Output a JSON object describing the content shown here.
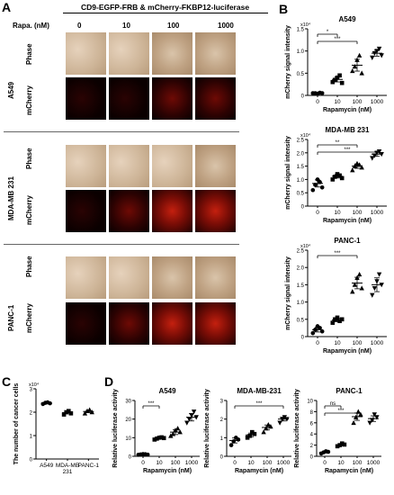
{
  "panel_a": {
    "letter": "A",
    "title": "CD9-EGFP-FRB & mCherry-FKBP12-luciferase",
    "rapa_label": "Rapa. (nM)",
    "concentrations": [
      "0",
      "10",
      "100",
      "1000"
    ],
    "cell_lines": [
      "A549",
      "MDA-MB 231",
      "PANC-1"
    ],
    "row_labels": [
      "Phase",
      "mCherry"
    ]
  },
  "panel_b": {
    "letter": "B",
    "ylabel": "mCherry signal intensity",
    "xlabel": "Rapamycin (nM)",
    "exponent": "x10⁴"
  },
  "panel_c": {
    "letter": "C",
    "ylabel": "The number of cancer cells",
    "exponent": "x10⁴"
  },
  "panel_d": {
    "letter": "D",
    "ylabel": "Relative luciferase activity",
    "xlabel": "Rapamycin (nM)"
  },
  "chart_data": [
    {
      "id": "B-A549",
      "type": "scatter",
      "title": "A549",
      "categories": [
        "0",
        "10",
        "100",
        "1000"
      ],
      "ylabel": "mCherry signal intensity",
      "xlabel": "Rapamycin (nM)",
      "ylim": [
        0,
        1.5
      ],
      "yticks": [
        "0",
        "0.5",
        "1.0",
        "1.5"
      ],
      "points": [
        [
          0.05,
          0.05,
          0.04,
          0.06,
          0.05
        ],
        [
          0.3,
          0.35,
          0.4,
          0.45,
          0.28
        ],
        [
          0.55,
          0.65,
          0.8,
          0.9,
          0.5
        ],
        [
          0.85,
          0.95,
          1.0,
          1.05,
          0.9
        ]
      ],
      "means": [
        0.05,
        0.36,
        0.68,
        0.95
      ],
      "sig": [
        {
          "from": 0,
          "to": 1,
          "label": "*"
        },
        {
          "from": 0,
          "to": 2,
          "label": "***"
        }
      ]
    },
    {
      "id": "B-MDA",
      "type": "scatter",
      "title": "MDA-MB 231",
      "categories": [
        "0",
        "10",
        "100",
        "1000"
      ],
      "ylabel": "mCherry signal intensity",
      "xlabel": "Rapamycin (nM)",
      "ylim": [
        0,
        2.5
      ],
      "yticks": [
        "0",
        "0.5",
        "1.0",
        "1.5",
        "2.0",
        "2.5"
      ],
      "points": [
        [
          0.6,
          0.8,
          1.0,
          0.9,
          0.7
        ],
        [
          1.0,
          1.1,
          1.2,
          1.15,
          1.05
        ],
        [
          1.35,
          1.5,
          1.6,
          1.55,
          1.45
        ],
        [
          1.8,
          1.9,
          2.0,
          2.05,
          1.95
        ]
      ],
      "means": [
        0.85,
        1.12,
        1.5,
        1.95
      ],
      "sig": [
        {
          "from": 0,
          "to": 2,
          "label": "**"
        },
        {
          "from": 0,
          "to": 3,
          "label": "***"
        }
      ]
    },
    {
      "id": "B-PANC",
      "type": "scatter",
      "title": "PANC-1",
      "categories": [
        "0",
        "10",
        "100",
        "1000"
      ],
      "ylabel": "mCherry signal intensity",
      "xlabel": "Rapamycin (nM)",
      "ylim": [
        0,
        2.5
      ],
      "yticks": [
        "0",
        "0.5",
        "1.0",
        "1.5",
        "2.0",
        "2.5"
      ],
      "points": [
        [
          0.1,
          0.2,
          0.3,
          0.25,
          0.15
        ],
        [
          0.4,
          0.5,
          0.55,
          0.45,
          0.5
        ],
        [
          1.3,
          1.5,
          1.7,
          1.8,
          1.4
        ],
        [
          1.2,
          1.4,
          1.6,
          1.8,
          1.5
        ]
      ],
      "means": [
        0.2,
        0.48,
        1.55,
        1.5
      ],
      "sig": [
        {
          "from": 0,
          "to": 2,
          "label": "***"
        }
      ]
    },
    {
      "id": "C",
      "type": "scatter",
      "title": "",
      "categories": [
        "A549",
        "MDA-MB 231",
        "PANC-1"
      ],
      "ylabel": "The number of cancer cells",
      "xlabel": "",
      "ylim": [
        0,
        3
      ],
      "yticks": [
        "0",
        "1",
        "2",
        "3"
      ],
      "points": [
        [
          2.35,
          2.4,
          2.42,
          2.38
        ],
        [
          1.9,
          2.0,
          2.05,
          1.95
        ],
        [
          1.95,
          2.05,
          2.1,
          2.0
        ]
      ],
      "means": [
        2.39,
        1.98,
        2.03
      ],
      "sig": []
    },
    {
      "id": "D-A549",
      "type": "scatter",
      "title": "A549",
      "categories": [
        "0",
        "10",
        "100",
        "1000"
      ],
      "ylabel": "Relative luciferase activity",
      "xlabel": "Rapamycin (nM)",
      "ylim": [
        0,
        30
      ],
      "yticks": [
        "0",
        "10",
        "20",
        "30"
      ],
      "points": [
        [
          0.8,
          1.0,
          1.2,
          1.1,
          0.9
        ],
        [
          9,
          9.5,
          10,
          10.2,
          9.8
        ],
        [
          11,
          12,
          14,
          15,
          13
        ],
        [
          18,
          20,
          22,
          24,
          21
        ]
      ],
      "means": [
        1.0,
        9.7,
        13.0,
        21.0
      ],
      "sig": [
        {
          "from": 0,
          "to": 1,
          "label": "***"
        }
      ]
    },
    {
      "id": "D-MDA",
      "type": "scatter",
      "title": "MDA-MB-231",
      "categories": [
        "0",
        "10",
        "100",
        "1000"
      ],
      "ylabel": "Relative luciferase activity",
      "xlabel": "Rapamycin (nM)",
      "ylim": [
        0,
        3
      ],
      "yticks": [
        "0",
        "1",
        "2",
        "3"
      ],
      "points": [
        [
          0.6,
          0.8,
          1.0,
          0.9
        ],
        [
          1.0,
          1.1,
          1.3,
          1.2
        ],
        [
          1.3,
          1.5,
          1.7,
          1.6
        ],
        [
          1.8,
          2.0,
          2.1,
          2.0
        ]
      ],
      "means": [
        0.85,
        1.15,
        1.55,
        2.0
      ],
      "sig": [
        {
          "from": 0,
          "to": 3,
          "label": "***"
        }
      ]
    },
    {
      "id": "D-PANC",
      "type": "scatter",
      "title": "PANC-1",
      "categories": [
        "0",
        "10",
        "100",
        "1000"
      ],
      "ylabel": "Relative luciferase activity",
      "xlabel": "Rapamycin (nM)",
      "ylim": [
        0,
        10
      ],
      "yticks": [
        "0",
        "2",
        "4",
        "6",
        "8",
        "10"
      ],
      "points": [
        [
          0.5,
          0.7,
          0.9,
          0.8
        ],
        [
          1.8,
          2.0,
          2.3,
          2.1
        ],
        [
          6,
          7,
          8,
          7.5
        ],
        [
          6,
          6.5,
          7.5,
          7
        ]
      ],
      "means": [
        0.72,
        2.05,
        7.1,
        6.75
      ],
      "sig": [
        {
          "from": 0,
          "to": 1,
          "label": "ns"
        },
        {
          "from": 0,
          "to": 2,
          "label": "***"
        }
      ]
    }
  ]
}
